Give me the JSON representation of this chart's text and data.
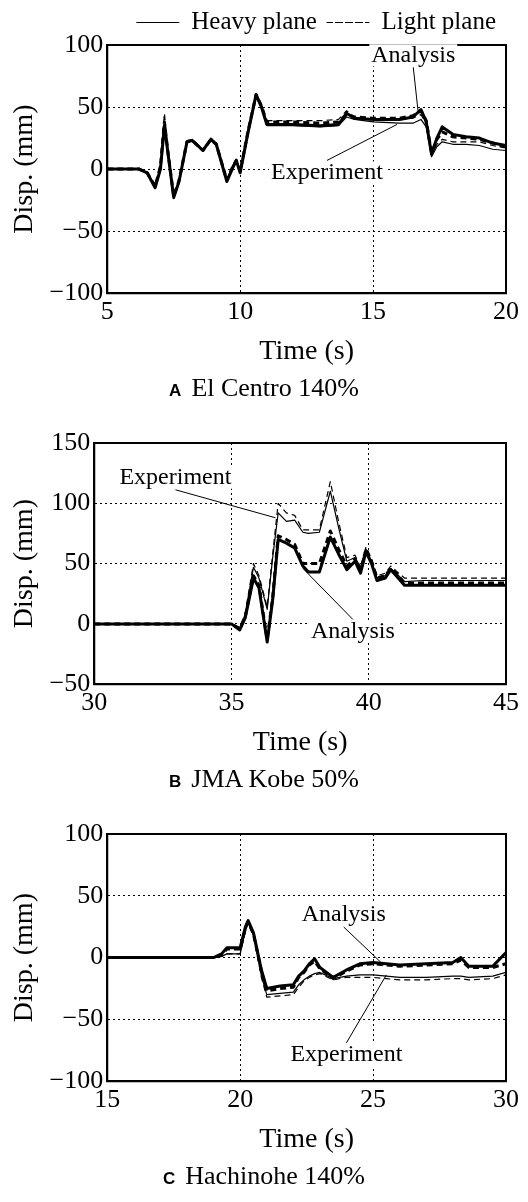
{
  "chart_data": [
    {
      "type": "line",
      "title": "A El Centro 140%",
      "xlabel": "Time (s)",
      "ylabel": "Disp. (mm)",
      "xlim": [
        5,
        20
      ],
      "xticks": [
        5,
        10,
        15,
        20
      ],
      "ylim": [
        -100,
        100
      ],
      "yticks": [
        -100,
        -50,
        0,
        50,
        100
      ],
      "grid": true,
      "legend": "top",
      "marker": "none",
      "x": [
        5,
        6.2,
        6.5,
        6.8,
        7.0,
        7.15,
        7.3,
        7.5,
        7.7,
        8.0,
        8.2,
        8.6,
        8.9,
        9.1,
        9.5,
        9.7,
        9.85,
        10.0,
        10.3,
        10.6,
        10.8,
        11.0,
        12,
        13,
        13.7,
        14.0,
        14.3,
        15,
        16,
        16.5,
        16.8,
        17.0,
        17.2,
        17.4,
        17.6,
        18,
        18.5,
        19,
        19.5,
        20
      ],
      "series": [
        {
          "name": "Heavy plane",
          "color": "#000000",
          "line_style": "solid",
          "values": [
            0,
            0,
            -3,
            -15,
            0,
            33,
            10,
            -23,
            -10,
            22,
            23,
            15,
            24,
            20,
            -10,
            0,
            7,
            -3,
            30,
            60,
            50,
            35,
            35,
            34,
            35,
            42,
            40,
            38,
            37,
            37,
            40,
            34,
            10,
            18,
            22,
            20,
            20,
            19,
            16,
            15
          ]
        },
        {
          "name": "Light plane",
          "color": "#000000",
          "line_style": "dashed",
          "values": [
            0,
            0,
            -2,
            -13,
            5,
            45,
            12,
            -22,
            -9,
            23,
            24,
            16,
            25,
            21,
            -8,
            2,
            8,
            -1,
            32,
            61,
            52,
            39,
            39,
            39,
            40,
            47,
            42,
            40,
            40,
            41,
            44,
            36,
            12,
            20,
            24,
            22,
            22,
            22,
            19,
            17
          ]
        },
        {
          "color": "#000000",
          "line_style": "solid",
          "values": [
            0,
            0,
            -3,
            -15,
            0,
            35,
            10,
            -23,
            -10,
            22,
            23,
            15,
            24,
            20,
            -10,
            0,
            7,
            -3,
            30,
            60,
            50,
            36,
            36,
            35,
            36,
            45,
            41,
            40,
            40,
            42,
            48,
            38,
            12,
            25,
            34,
            28,
            26,
            25,
            21,
            19
          ]
        },
        {
          "color": "#000000",
          "line_style": "dashed",
          "values": [
            0,
            0,
            -3,
            -14,
            2,
            38,
            11,
            -22,
            -9,
            22,
            23,
            15,
            24,
            20,
            -9,
            1,
            7,
            -2,
            31,
            60,
            51,
            38,
            38,
            37,
            38,
            44,
            42,
            41,
            41,
            43,
            47,
            39,
            13,
            24,
            30,
            26,
            25,
            24,
            21,
            18
          ]
        }
      ],
      "annotations": [
        {
          "text": "Analysis",
          "x": 16.7,
          "y": 45
        },
        {
          "text": "Experiment",
          "x": 15.9,
          "y": 36
        }
      ]
    },
    {
      "type": "line",
      "title": "B JMA Kobe 50%",
      "xlabel": "Time (s)",
      "ylabel": "Disp. (mm)",
      "xlim": [
        30,
        45
      ],
      "xticks": [
        30,
        35,
        40,
        45
      ],
      "ylim": [
        -50,
        150
      ],
      "yticks": [
        -50,
        0,
        50,
        100,
        150
      ],
      "grid": true,
      "marker": "none",
      "x": [
        30,
        35,
        35.3,
        35.5,
        35.8,
        36.0,
        36.3,
        36.5,
        36.7,
        37.0,
        37.3,
        37.6,
        37.8,
        38.2,
        38.6,
        38.9,
        39.2,
        39.5,
        39.7,
        39.9,
        40.1,
        40.3,
        40.6,
        40.8,
        41.0,
        41.3,
        42,
        45
      ],
      "series": [
        {
          "color": "#000000",
          "line_style": "solid",
          "values": [
            0,
            0,
            -4,
            8,
            47,
            38,
            12,
            55,
            92,
            85,
            86,
            76,
            75,
            76,
            110,
            80,
            52,
            55,
            45,
            62,
            52,
            38,
            40,
            46,
            42,
            35,
            36,
            36
          ]
        },
        {
          "color": "#000000",
          "line_style": "dashed",
          "values": [
            0,
            0,
            -3,
            9,
            50,
            40,
            14,
            58,
            100,
            92,
            90,
            78,
            78,
            78,
            118,
            85,
            55,
            57,
            47,
            64,
            54,
            40,
            42,
            48,
            44,
            38,
            38,
            38
          ]
        },
        {
          "color": "#000000",
          "line_style": "solid",
          "values": [
            0,
            0,
            -5,
            5,
            38,
            30,
            -15,
            20,
            70,
            67,
            63,
            48,
            43,
            43,
            72,
            58,
            45,
            52,
            42,
            60,
            50,
            36,
            38,
            45,
            40,
            32,
            32,
            32
          ]
        },
        {
          "color": "#000000",
          "line_style": "dashed",
          "values": [
            0,
            0,
            -4,
            6,
            40,
            32,
            -13,
            22,
            73,
            70,
            66,
            50,
            50,
            50,
            77,
            62,
            48,
            54,
            44,
            62,
            52,
            38,
            40,
            46,
            42,
            34,
            34,
            34
          ]
        }
      ],
      "annotations": [
        {
          "text": "Experiment",
          "x": 36.6,
          "y": 88
        },
        {
          "text": "Analysis",
          "x": 37.6,
          "y": 46
        }
      ]
    },
    {
      "type": "line",
      "title": "C Hachinohe 140%",
      "xlabel": "Time (s)",
      "ylabel": "Disp. (mm)",
      "xlim": [
        15,
        30
      ],
      "xticks": [
        15,
        20,
        25,
        30
      ],
      "ylim": [
        -100,
        100
      ],
      "yticks": [
        -100,
        -50,
        0,
        50,
        100
      ],
      "grid": true,
      "marker": "none",
      "x": [
        15,
        19,
        19.3,
        19.5,
        20,
        20.2,
        20.3,
        20.5,
        20.8,
        21,
        21.5,
        22,
        22.2,
        22.4,
        22.6,
        22.8,
        23.0,
        23.5,
        24,
        24.5,
        25,
        25.5,
        26,
        27,
        28,
        28.3,
        28.6,
        29.5,
        30
      ],
      "series": [
        {
          "color": "#000000",
          "line_style": "solid",
          "values": [
            0,
            0,
            1,
            3,
            3,
            22,
            28,
            18,
            -15,
            -30,
            -29,
            -28,
            -22,
            -18,
            -15,
            -13,
            -12,
            -17,
            -15,
            -14,
            -14,
            -15,
            -16,
            -16,
            -15,
            -15,
            -16,
            -15,
            -12
          ]
        },
        {
          "color": "#000000",
          "line_style": "dashed",
          "values": [
            0,
            0,
            1,
            3,
            3,
            22,
            28,
            18,
            -16,
            -32,
            -31,
            -30,
            -24,
            -19,
            -16,
            -14,
            -13,
            -18,
            -16,
            -16,
            -16,
            -17,
            -18,
            -18,
            -17,
            -17,
            -18,
            -17,
            -14
          ]
        },
        {
          "color": "#000000",
          "line_style": "solid",
          "values": [
            0,
            0,
            3,
            8,
            8,
            25,
            30,
            20,
            -10,
            -25,
            -23,
            -22,
            -15,
            -11,
            -5,
            -1,
            -8,
            -16,
            -10,
            -5,
            -4,
            -5,
            -6,
            -5,
            -4,
            0,
            -7,
            -7,
            4
          ]
        },
        {
          "color": "#000000",
          "line_style": "dashed",
          "values": [
            0,
            0,
            2,
            7,
            7,
            24,
            29,
            19,
            -11,
            -27,
            -25,
            -24,
            -16,
            -12,
            -6,
            -3,
            -9,
            -17,
            -11,
            -6,
            -5,
            -6,
            -7,
            -6,
            -5,
            -2,
            -8,
            -8,
            -5
          ]
        }
      ],
      "annotations": [
        {
          "text": "Analysis",
          "x": 25.4,
          "y": -6
        },
        {
          "text": "Experiment",
          "x": 25.5,
          "y": -14
        }
      ]
    }
  ]
}
